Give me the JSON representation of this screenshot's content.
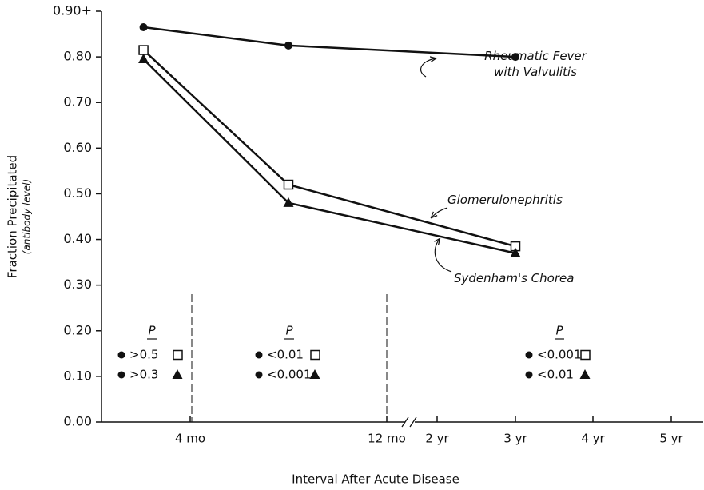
{
  "chart_data": {
    "type": "line",
    "y_label": "Fraction Precipitated",
    "y_sublabel": "(antibody level)",
    "x_label": "Interval After Acute Disease",
    "xlim": [
      0,
      60
    ],
    "xticks": [
      {
        "value": 4,
        "label": "4 mo"
      },
      {
        "value": 12,
        "label": "12 mo"
      },
      {
        "value": 24,
        "label": "2 yr"
      },
      {
        "value": 36,
        "label": "3 yr"
      },
      {
        "value": 48,
        "label": "4 yr"
      },
      {
        "value": 60,
        "label": "5 yr"
      }
    ],
    "ylim": [
      0,
      0.9
    ],
    "yticks": [
      {
        "value": 0,
        "label": "0.00"
      },
      {
        "value": 0.1,
        "label": "0.10"
      },
      {
        "value": 0.2,
        "label": "0.20"
      },
      {
        "value": 0.3,
        "label": "0.30"
      },
      {
        "value": 0.4,
        "label": "0.40"
      },
      {
        "value": 0.5,
        "label": "0.50"
      },
      {
        "value": 0.6,
        "label": "0.60"
      },
      {
        "value": 0.7,
        "label": "0.70"
      },
      {
        "value": 0.8,
        "label": "0.80"
      },
      {
        "value": 0.9,
        "label": "0.90+"
      }
    ],
    "series": [
      {
        "name": "Rheumatic Fever with Valvulitis",
        "color": "#111111",
        "marker": "circle",
        "x": [
          2.1,
          8.0,
          36
        ],
        "values": [
          0.865,
          0.825,
          0.8
        ]
      },
      {
        "name": "Glomerulonephritis",
        "color": "#111111",
        "marker": "square",
        "x": [
          2.1,
          8.0,
          36
        ],
        "values": [
          0.815,
          0.52,
          0.385
        ]
      },
      {
        "name": "Sydenham's Chorea",
        "color": "#111111",
        "marker": "triangle",
        "x": [
          2.1,
          8.0,
          36
        ],
        "values": [
          0.795,
          0.48,
          0.37
        ]
      }
    ],
    "p_tables": [
      {
        "label": "P",
        "square": ">0.5",
        "triangle": ">0.3"
      },
      {
        "label": "P",
        "square": "<0.01",
        "triangle": "<0.001"
      },
      {
        "label": "P",
        "square": "<0.001",
        "triangle": "<0.01"
      }
    ]
  }
}
